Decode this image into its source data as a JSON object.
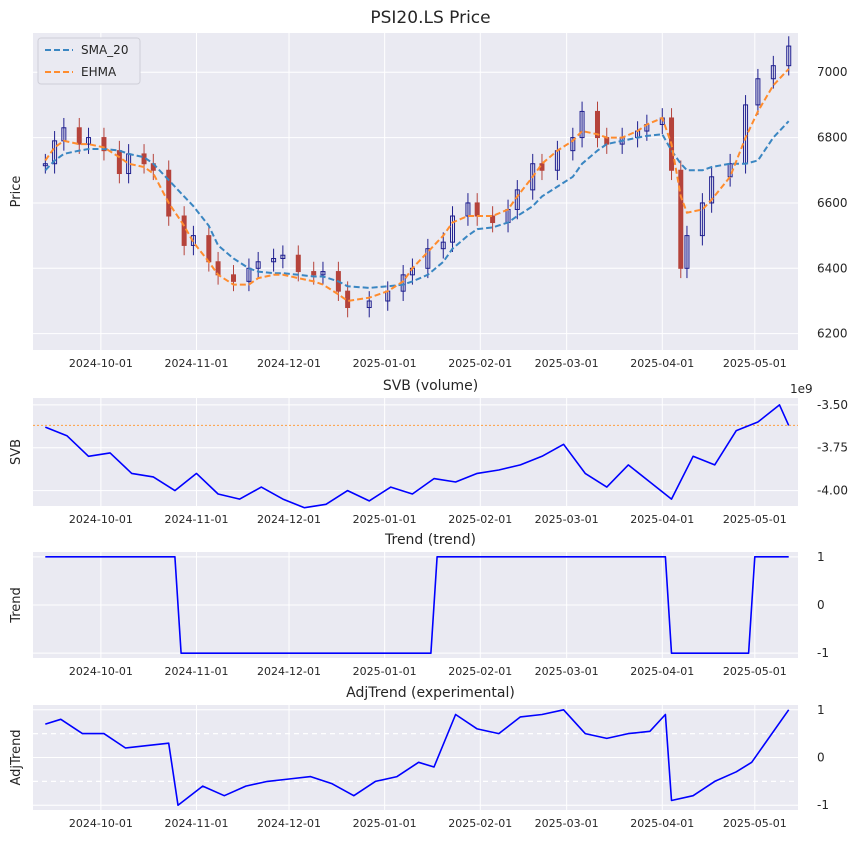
{
  "colors": {
    "panel_bg": "#eaeaf2",
    "grid": "#ffffff",
    "candle_up_edge": "#1f1f8f",
    "candle_down": "#b5433b",
    "sma": "#3a86c2",
    "ehma": "#ff8c2e",
    "line": "#0000ff",
    "ref_line": "#ff9f3f",
    "dash_grid": "#ffffff"
  },
  "x_ticks": [
    "2024-10-01",
    "2024-11-01",
    "2024-12-01",
    "2025-01-01",
    "2025-02-01",
    "2025-03-01",
    "2025-04-01",
    "2025-05-01"
  ],
  "chart_data": [
    {
      "type": "candlestick",
      "title": "PSI20.LS Price",
      "ylabel": "Price",
      "ylim": [
        6150,
        7120
      ],
      "yticks": [
        "6200",
        "6400",
        "6600",
        "6800",
        "7000"
      ],
      "legend": {
        "placement": "top-left",
        "entries": [
          "SMA_20",
          "EHMA"
        ]
      },
      "x": [
        "2024-09-13",
        "2024-09-16",
        "2024-09-19",
        "2024-09-24",
        "2024-09-27",
        "2024-10-02",
        "2024-10-07",
        "2024-10-10",
        "2024-10-15",
        "2024-10-18",
        "2024-10-23",
        "2024-10-28",
        "2024-10-31",
        "2024-11-05",
        "2024-11-08",
        "2024-11-13",
        "2024-11-18",
        "2024-11-21",
        "2024-11-26",
        "2024-11-29",
        "2024-12-04",
        "2024-12-09",
        "2024-12-12",
        "2024-12-17",
        "2024-12-20",
        "2024-12-27",
        "2025-01-02",
        "2025-01-07",
        "2025-01-10",
        "2025-01-15",
        "2025-01-20",
        "2025-01-23",
        "2025-01-28",
        "2025-01-31",
        "2025-02-05",
        "2025-02-10",
        "2025-02-13",
        "2025-02-18",
        "2025-02-21",
        "2025-02-26",
        "2025-03-03",
        "2025-03-06",
        "2025-03-11",
        "2025-03-14",
        "2025-03-19",
        "2025-03-24",
        "2025-03-27",
        "2025-04-01",
        "2025-04-04",
        "2025-04-07",
        "2025-04-09",
        "2025-04-14",
        "2025-04-17",
        "2025-04-23",
        "2025-04-28",
        "2025-05-02",
        "2025-05-07",
        "2025-05-12"
      ],
      "close": [
        6720,
        6790,
        6830,
        6780,
        6800,
        6760,
        6690,
        6750,
        6720,
        6700,
        6560,
        6470,
        6500,
        6420,
        6380,
        6360,
        6400,
        6420,
        6430,
        6440,
        6390,
        6380,
        6390,
        6330,
        6280,
        6300,
        6330,
        6380,
        6400,
        6460,
        6480,
        6560,
        6600,
        6560,
        6540,
        6580,
        6640,
        6720,
        6700,
        6760,
        6800,
        6880,
        6800,
        6780,
        6800,
        6820,
        6840,
        6860,
        6700,
        6400,
        6500,
        6600,
        6680,
        6720,
        6900,
        6980,
        7020,
        7080
      ],
      "sma_20": [
        6700,
        6730,
        6750,
        6760,
        6765,
        6765,
        6760,
        6750,
        6740,
        6720,
        6670,
        6620,
        6590,
        6530,
        6470,
        6430,
        6400,
        6390,
        6385,
        6385,
        6380,
        6375,
        6375,
        6360,
        6345,
        6340,
        6345,
        6350,
        6360,
        6380,
        6420,
        6460,
        6500,
        6520,
        6525,
        6540,
        6560,
        6590,
        6620,
        6650,
        6680,
        6720,
        6760,
        6780,
        6790,
        6800,
        6805,
        6810,
        6760,
        6720,
        6700,
        6700,
        6710,
        6720,
        6720,
        6730,
        6800,
        6850
      ],
      "ehma": [
        6730,
        6770,
        6790,
        6780,
        6780,
        6770,
        6740,
        6720,
        6710,
        6690,
        6600,
        6530,
        6480,
        6420,
        6380,
        6350,
        6350,
        6370,
        6380,
        6380,
        6370,
        6360,
        6350,
        6320,
        6300,
        6310,
        6330,
        6360,
        6400,
        6450,
        6500,
        6540,
        6560,
        6560,
        6560,
        6580,
        6620,
        6680,
        6720,
        6760,
        6790,
        6820,
        6810,
        6800,
        6800,
        6820,
        6840,
        6860,
        6780,
        6620,
        6570,
        6580,
        6610,
        6680,
        6800,
        6880,
        6960,
        7010
      ]
    },
    {
      "type": "line",
      "title": "SVB (volume)",
      "ylabel": "SVB",
      "ylim": [
        -4.09,
        -3.46
      ],
      "yticks": [
        "-3.50",
        "-3.75",
        "-4.00"
      ],
      "offset_text": "1e9",
      "ref_line": -3.62,
      "x": [
        "2024-09-13",
        "2024-09-20",
        "2024-09-27",
        "2024-10-04",
        "2024-10-11",
        "2024-10-18",
        "2024-10-25",
        "2024-11-01",
        "2024-11-08",
        "2024-11-15",
        "2024-11-22",
        "2024-11-29",
        "2024-12-06",
        "2024-12-13",
        "2024-12-20",
        "2024-12-27",
        "2025-01-03",
        "2025-01-10",
        "2025-01-17",
        "2025-01-24",
        "2025-01-31",
        "2025-02-07",
        "2025-02-14",
        "2025-02-21",
        "2025-02-28",
        "2025-03-07",
        "2025-03-14",
        "2025-03-21",
        "2025-03-28",
        "2025-04-04",
        "2025-04-11",
        "2025-04-18",
        "2025-04-25",
        "2025-05-02",
        "2025-05-09",
        "2025-05-12"
      ],
      "values": [
        -3.63,
        -3.68,
        -3.8,
        -3.78,
        -3.9,
        -3.92,
        -4.0,
        -3.9,
        -4.02,
        -4.05,
        -3.98,
        -4.05,
        -4.1,
        -4.08,
        -4.0,
        -4.06,
        -3.98,
        -4.02,
        -3.93,
        -3.95,
        -3.9,
        -3.88,
        -3.85,
        -3.8,
        -3.73,
        -3.9,
        -3.98,
        -3.85,
        -3.95,
        -4.05,
        -3.8,
        -3.85,
        -3.65,
        -3.6,
        -3.5,
        -3.62
      ]
    },
    {
      "type": "line",
      "title": "Trend (trend)",
      "ylabel": "Trend",
      "ylim": [
        -1.1,
        1.1
      ],
      "yticks": [
        "1",
        "0",
        "-1"
      ],
      "x": [
        "2024-09-13",
        "2024-10-25",
        "2024-10-27",
        "2025-01-16",
        "2025-01-18",
        "2025-04-02",
        "2025-04-04",
        "2025-04-29",
        "2025-05-01",
        "2025-05-12"
      ],
      "values": [
        1,
        1,
        -1,
        -1,
        1,
        1,
        -1,
        -1,
        1,
        1
      ]
    },
    {
      "type": "line",
      "title": "AdjTrend (experimental)",
      "ylabel": "AdjTrend",
      "ylim": [
        -1.1,
        1.1
      ],
      "yticks": [
        "1",
        "0",
        "-1"
      ],
      "x": [
        "2024-09-13",
        "2024-09-18",
        "2024-09-25",
        "2024-10-02",
        "2024-10-09",
        "2024-10-16",
        "2024-10-23",
        "2024-10-26",
        "2024-11-03",
        "2024-11-10",
        "2024-11-17",
        "2024-11-24",
        "2024-12-01",
        "2024-12-08",
        "2024-12-15",
        "2024-12-22",
        "2024-12-29",
        "2025-01-05",
        "2025-01-12",
        "2025-01-17",
        "2025-01-24",
        "2025-01-31",
        "2025-02-07",
        "2025-02-14",
        "2025-02-21",
        "2025-02-28",
        "2025-03-07",
        "2025-03-14",
        "2025-03-21",
        "2025-03-28",
        "2025-04-02",
        "2025-04-04",
        "2025-04-11",
        "2025-04-18",
        "2025-04-25",
        "2025-04-30",
        "2025-05-12"
      ],
      "values": [
        0.7,
        0.8,
        0.5,
        0.5,
        0.2,
        0.25,
        0.3,
        -1.0,
        -0.6,
        -0.8,
        -0.6,
        -0.5,
        -0.45,
        -0.4,
        -0.55,
        -0.8,
        -0.5,
        -0.4,
        -0.1,
        -0.2,
        0.9,
        0.6,
        0.5,
        0.85,
        0.9,
        1.0,
        0.5,
        0.4,
        0.5,
        0.55,
        0.9,
        -0.9,
        -0.8,
        -0.5,
        -0.3,
        -0.1,
        1.0
      ]
    }
  ]
}
